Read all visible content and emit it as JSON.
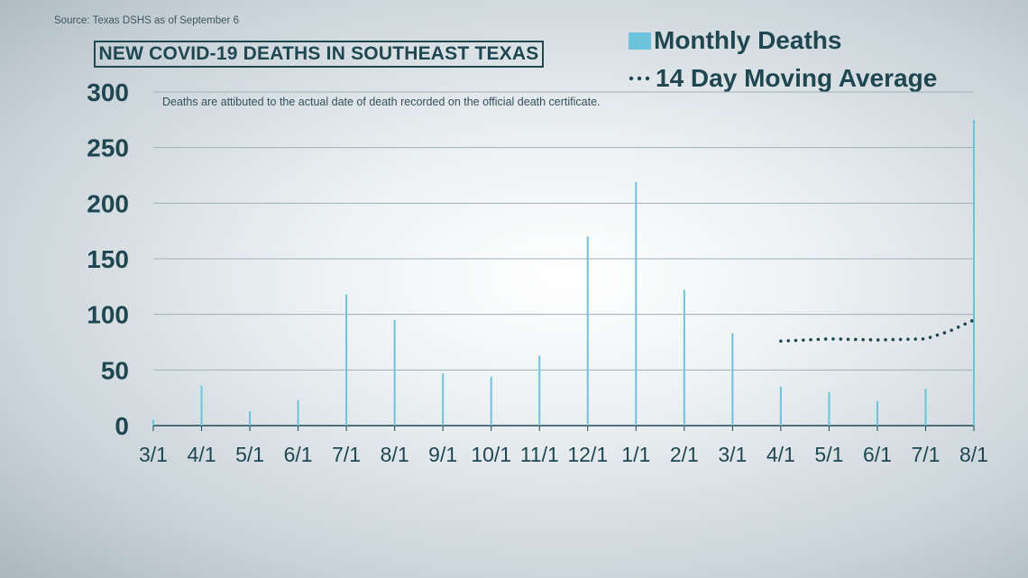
{
  "source": "Source: Texas DSHS as of September 6",
  "title": "NEW COVID-19 DEATHS IN SOUTHEAST TEXAS",
  "note": "Deaths are attibuted to the actual date of death recorded on the official death certificate.",
  "legend": {
    "bar_label": "Monthly Deaths",
    "line_label": "14 Day Moving Average"
  },
  "colors": {
    "bar": "#6ec3dc",
    "line": "#1f4752",
    "text": "#1f4752",
    "grid": "#9fb0b8"
  },
  "chart_data": {
    "type": "bar",
    "title": "NEW COVID-19 DEATHS IN SOUTHEAST TEXAS",
    "xlabel": "",
    "ylabel": "",
    "ylim": [
      0,
      300
    ],
    "yticks": [
      0,
      50,
      100,
      150,
      200,
      250,
      300
    ],
    "grid": true,
    "legend_position": "top-right",
    "categories": [
      "3/1",
      "4/1",
      "5/1",
      "6/1",
      "7/1",
      "8/1",
      "9/1",
      "10/1",
      "11/1",
      "12/1",
      "1/1",
      "2/1",
      "3/1",
      "4/1",
      "5/1",
      "6/1",
      "7/1",
      "8/1"
    ],
    "series": [
      {
        "name": "Monthly Deaths",
        "type": "bar",
        "values": [
          5,
          36,
          13,
          23,
          118,
          95,
          47,
          44,
          63,
          170,
          219,
          122,
          83,
          35,
          30,
          22,
          33,
          275
        ]
      },
      {
        "name": "14 Day Moving Average",
        "type": "line",
        "style": "dotted",
        "x": [
          "4/1",
          "5/1",
          "6/1",
          "7/1",
          "7/15",
          "8/1"
        ],
        "x_index": [
          13,
          14,
          15,
          16,
          16.5,
          17
        ],
        "values": [
          76,
          78,
          77,
          78,
          85,
          95
        ]
      }
    ]
  }
}
